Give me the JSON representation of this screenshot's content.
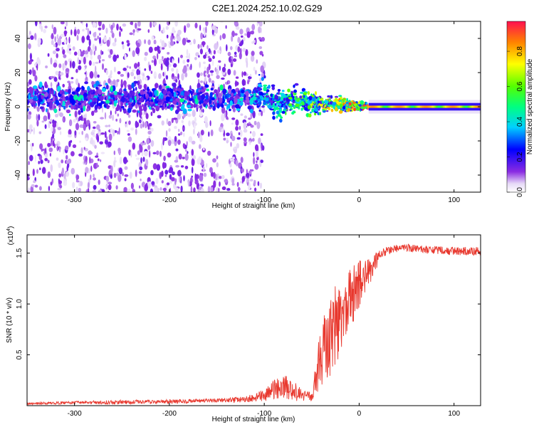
{
  "title": "C2E1.2024.252.10.02.G29",
  "chart_data": [
    {
      "type": "heatmap",
      "name": "spectrogram",
      "xlabel": "Height of straight line (km)",
      "ylabel": "Frequency (Hz)",
      "xlim": [
        -350,
        128
      ],
      "ylim": [
        -50,
        50
      ],
      "xticks": [
        -300,
        -200,
        -100,
        0,
        100
      ],
      "yticks": [
        -40,
        -20,
        0,
        20,
        40
      ],
      "colorbar": {
        "label": "Normalized spectral amplitude",
        "range": [
          0.0,
          0.97
        ],
        "ticks": [
          0.0,
          0.2,
          0.4,
          0.6,
          0.8
        ]
      },
      "description_values": {
        "noise_region_x": [
          -350,
          -110
        ],
        "noise_band_center_hz": 5,
        "noise_band_halfwidth_hz": 8,
        "transition_x": [
          -110,
          10
        ],
        "transition_drift_hz": [
          5,
          0
        ],
        "clean_line_x": [
          10,
          128
        ],
        "clean_line_hz": 0,
        "clean_line_amplitude": 0.95
      }
    },
    {
      "type": "line",
      "name": "snr",
      "xlabel": "Height of straight line (km)",
      "ylabel": "SNR (10 * v/v)",
      "yunit_label": "(x10",
      "yunit_exp": "4",
      "xlim": [
        -350,
        128
      ],
      "ylim": [
        0,
        1.68
      ],
      "xticks": [
        -300,
        -200,
        -100,
        0,
        100
      ],
      "yticks": [
        0.5,
        1.0,
        1.5
      ],
      "color": "#e8382e",
      "series": [
        {
          "x": [
            -350,
            -300,
            -250,
            -200,
            -150,
            -120,
            -100,
            -90,
            -80,
            -70,
            -60,
            -50,
            -45,
            -40,
            -35,
            -30,
            -25,
            -20,
            -15,
            -10,
            -5,
            0,
            5,
            10,
            15,
            20,
            25,
            30,
            40,
            50,
            60,
            80,
            100,
            128
          ],
          "y": [
            0.02,
            0.03,
            0.035,
            0.04,
            0.05,
            0.06,
            0.1,
            0.15,
            0.2,
            0.15,
            0.1,
            0.08,
            0.3,
            0.5,
            0.6,
            0.7,
            0.8,
            0.85,
            0.95,
            1.05,
            1.1,
            1.2,
            1.25,
            1.3,
            1.38,
            1.45,
            1.5,
            1.53,
            1.55,
            1.55,
            1.54,
            1.53,
            1.52,
            1.52
          ],
          "noise": [
            0.01,
            0.015,
            0.02,
            0.02,
            0.02,
            0.03,
            0.06,
            0.1,
            0.12,
            0.1,
            0.06,
            0.05,
            0.2,
            0.3,
            0.35,
            0.4,
            0.4,
            0.35,
            0.3,
            0.3,
            0.3,
            0.25,
            0.2,
            0.15,
            0.1,
            0.07,
            0.05,
            0.04,
            0.04,
            0.04,
            0.04,
            0.04,
            0.04,
            0.04
          ]
        }
      ]
    }
  ]
}
